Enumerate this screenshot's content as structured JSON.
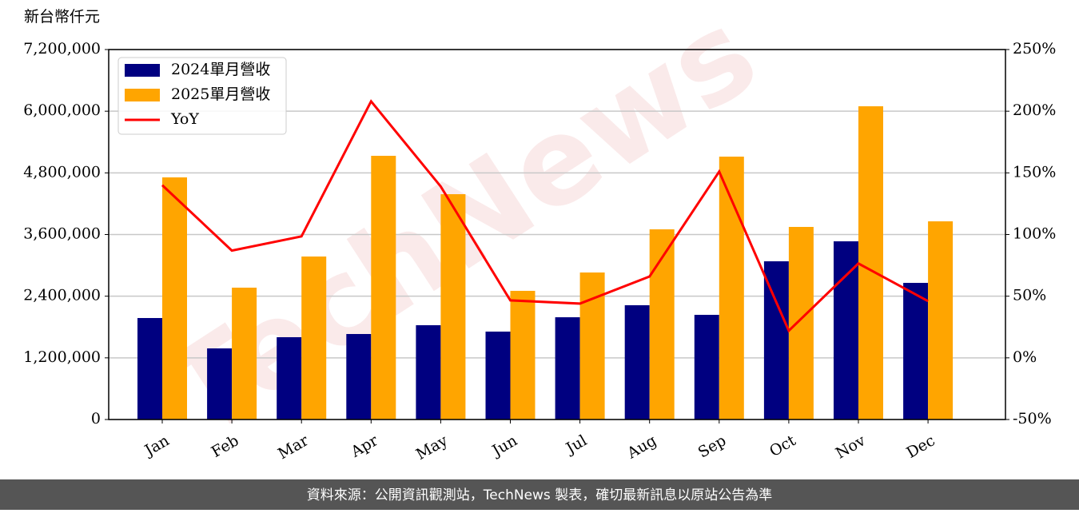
{
  "chart_data": {
    "type": "bar_line",
    "y_label": "新台幣仟元",
    "watermark": "TechNews",
    "footer": "資料來源：公開資訊觀測站，TechNews 製表，確切最新訊息以原站公告為準",
    "categories": [
      "Jan",
      "Feb",
      "Mar",
      "Apr",
      "May",
      "Jun",
      "Jul",
      "Aug",
      "Sep",
      "Oct",
      "Nov",
      "Dec"
    ],
    "series": [
      {
        "name": "2024單月營收",
        "color": "#000080",
        "kind": "bar",
        "values": [
          1975000,
          1384000,
          1602000,
          1664000,
          1835000,
          1711000,
          1990000,
          2224000,
          2037000,
          3079000,
          3468000,
          2659000
        ]
      },
      {
        "name": "2025單月營收",
        "color": "#ffa500",
        "kind": "bar",
        "values": [
          4712000,
          2566000,
          3172000,
          5132000,
          4385000,
          2504000,
          2861000,
          3701000,
          5116000,
          3748000,
          6096000,
          3857000
        ]
      },
      {
        "name": "YoY",
        "color": "#ff0000",
        "kind": "line",
        "axis": "y2",
        "values": [
          140,
          87,
          98.5,
          208,
          139,
          46.6,
          44,
          66,
          151,
          22,
          76.5,
          46
        ]
      }
    ],
    "ylim": [
      0,
      7200000
    ],
    "yticks": [
      0,
      {
        "value": 1200000,
        "label": "1,200,000"
      },
      {
        "value": 2400000,
        "label": "2,400,000"
      },
      {
        "value": 3600000,
        "label": "3,600,000"
      },
      {
        "value": 4800000,
        "label": "4,800,000"
      },
      {
        "value": 6000000,
        "label": "6,000,000"
      },
      {
        "value": 7200000,
        "label": "7,200,000"
      }
    ],
    "y2lim": [
      -50,
      250
    ],
    "y2ticks": [
      {
        "value": -50,
        "label": "-50%"
      },
      {
        "value": 0,
        "label": "0%"
      },
      {
        "value": 50,
        "label": "50%"
      },
      {
        "value": 100,
        "label": "100%"
      },
      {
        "value": 150,
        "label": "150%"
      },
      {
        "value": 200,
        "label": "200%"
      },
      {
        "value": 250,
        "label": "250%"
      }
    ],
    "grid": true,
    "legend": "upper left"
  }
}
